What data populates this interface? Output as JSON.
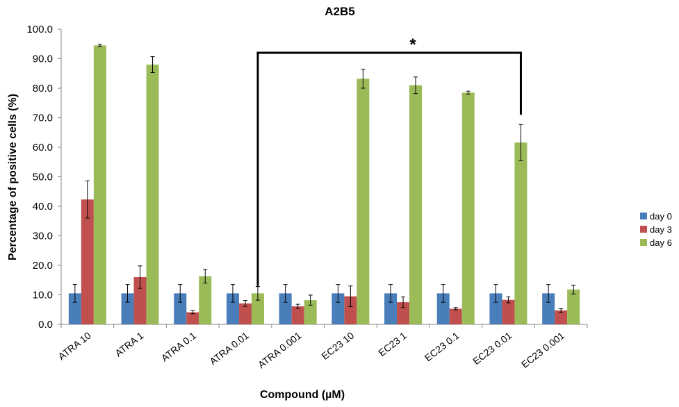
{
  "chart_data": {
    "type": "bar",
    "title": "A2B5",
    "xlabel": "Compound (µM)",
    "ylabel": "Percentage of positive cells (%)",
    "ylim": [
      0,
      100
    ],
    "yticks": [
      "0.0",
      "10.0",
      "20.0",
      "30.0",
      "40.0",
      "50.0",
      "60.0",
      "70.0",
      "80.0",
      "90.0",
      "100.0"
    ],
    "categories": [
      "ATRA 10",
      "ATRA 1",
      "ATRA 0.1",
      "ATRA 0.01",
      "ATRA 0.001",
      "EC23 10",
      "EC23 1",
      "EC23 0.1",
      "EC23 0.01",
      "EC23 0.001"
    ],
    "series": [
      {
        "name": "day 0",
        "color": "#4a7ebb",
        "values": [
          10.5,
          10.5,
          10.5,
          10.5,
          10.5,
          10.5,
          10.5,
          10.5,
          10.5,
          10.5
        ],
        "errors": [
          3.0,
          3.0,
          3.0,
          3.0,
          3.0,
          3.0,
          3.0,
          3.0,
          3.0,
          3.0
        ]
      },
      {
        "name": "day 3",
        "color": "#c0504d",
        "values": [
          42.3,
          16.0,
          4.1,
          7.1,
          6.1,
          9.5,
          7.5,
          5.3,
          8.3,
          4.7
        ],
        "errors": [
          6.3,
          3.8,
          0.5,
          1.0,
          0.7,
          3.5,
          1.8,
          0.4,
          1.0,
          0.6
        ]
      },
      {
        "name": "day 6",
        "color": "#9bbb59",
        "values": [
          94.5,
          88.0,
          16.3,
          10.5,
          8.2,
          83.2,
          81.0,
          78.5,
          61.6,
          11.8
        ],
        "errors": [
          0.4,
          2.7,
          2.3,
          2.3,
          1.7,
          3.2,
          2.8,
          0.5,
          6.1,
          1.5
        ]
      }
    ],
    "grid": false,
    "legend_position": "right",
    "annotation": {
      "text": "*",
      "from_category": "ATRA 0.01",
      "to_category": "EC23 0.01",
      "bracket_y": 92,
      "left_end_y": 13.0,
      "right_end_y": 71.0
    }
  }
}
